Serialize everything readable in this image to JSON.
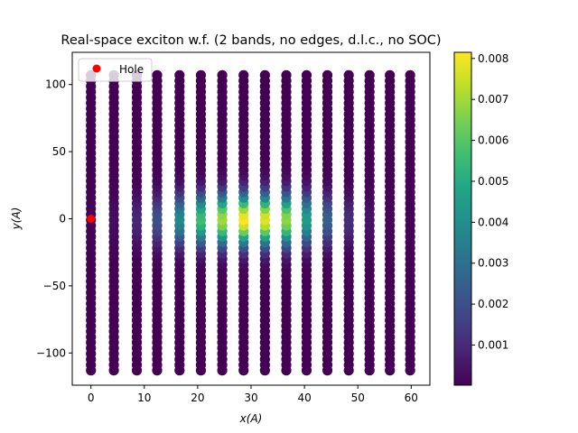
{
  "chart_data": {
    "type": "scatter",
    "title": "Real-space exciton w.f. (2 bands, no edges, d.l.c., no SOC)",
    "xlabel": "x(A)",
    "ylabel": "y(A)",
    "xlim": [
      -3.5,
      63.5
    ],
    "ylim": [
      -124,
      124
    ],
    "xticks": [
      0,
      10,
      20,
      30,
      40,
      50,
      60
    ],
    "yticks": [
      -100,
      -50,
      0,
      50,
      100
    ],
    "grid": false,
    "legend": {
      "placement": "top-left",
      "entries": [
        {
          "name": "Hole",
          "color": "#ff0000"
        }
      ]
    },
    "colorbar": {
      "colormap": "viridis",
      "range": [
        2e-05,
        0.00815
      ],
      "ticks": [
        0.001,
        0.002,
        0.003,
        0.004,
        0.005,
        0.006,
        0.007,
        0.008
      ],
      "tick_labels": [
        "0.001",
        "0.002",
        "0.003",
        "0.004",
        "0.005",
        "0.006",
        "0.007",
        "0.008"
      ]
    },
    "series": [
      {
        "name": "Hole",
        "color": "#ff0000",
        "points": [
          {
            "x": 0,
            "y": 0
          }
        ]
      }
    ],
    "columns": [
      {
        "x": 0.0,
        "peak": 8e-05
      },
      {
        "x": 4.3,
        "peak": 0.0003
      },
      {
        "x": 8.6,
        "peak": 0.0009
      },
      {
        "x": 12.4,
        "peak": 0.002
      },
      {
        "x": 16.6,
        "peak": 0.0038
      },
      {
        "x": 20.6,
        "peak": 0.0056
      },
      {
        "x": 24.6,
        "peak": 0.007
      },
      {
        "x": 28.6,
        "peak": 0.0081
      },
      {
        "x": 32.6,
        "peak": 0.0078
      },
      {
        "x": 36.6,
        "peak": 0.0068
      },
      {
        "x": 40.4,
        "peak": 0.0045
      },
      {
        "x": 44.3,
        "peak": 0.0025
      },
      {
        "x": 48.3,
        "peak": 0.0011
      },
      {
        "x": 52.2,
        "peak": 0.00045
      },
      {
        "x": 56.0,
        "peak": 0.00015
      },
      {
        "x": 59.8,
        "peak": 6e-05
      }
    ],
    "column_y_range": [
      -113,
      111
    ],
    "column_y_step": 4.15,
    "envelope_width_y": 13
  }
}
